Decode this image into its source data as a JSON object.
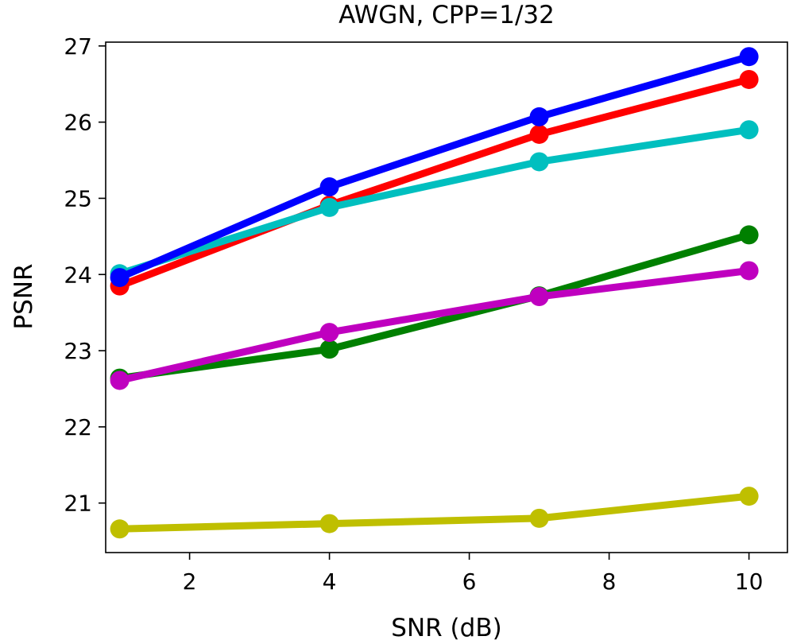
{
  "chart_data": {
    "type": "line",
    "title": "AWGN, CPP=1/32",
    "xlabel": "SNR (dB)",
    "ylabel": "PSNR",
    "xlim": [
      0.8,
      10.55
    ],
    "ylim": [
      20.35,
      27.05
    ],
    "x_ticks": [
      2,
      4,
      6,
      8,
      10
    ],
    "x_tick_labels": [
      "2",
      "4",
      "6",
      "8",
      "10"
    ],
    "y_ticks": [
      21,
      22,
      23,
      24,
      25,
      26,
      27
    ],
    "y_tick_labels": [
      "21",
      "22",
      "23",
      "24",
      "25",
      "26",
      "27"
    ],
    "grid": false,
    "legend": "none",
    "x": [
      1,
      4,
      7,
      10
    ],
    "series": [
      {
        "name": "yellow",
        "color": "#bfbf00",
        "values": [
          20.66,
          20.73,
          20.8,
          21.09
        ]
      },
      {
        "name": "green",
        "color": "#008000",
        "values": [
          22.64,
          23.02,
          23.72,
          24.52
        ]
      },
      {
        "name": "magenta",
        "color": "#bf00bf",
        "values": [
          22.61,
          23.24,
          23.71,
          24.05
        ]
      },
      {
        "name": "red",
        "color": "#ff0000",
        "values": [
          23.85,
          24.91,
          25.84,
          26.56
        ]
      },
      {
        "name": "cyan",
        "color": "#00bfbf",
        "values": [
          24.01,
          24.88,
          25.48,
          25.9
        ]
      },
      {
        "name": "blue",
        "color": "#0000ff",
        "values": [
          23.96,
          25.15,
          26.07,
          26.86
        ]
      }
    ]
  }
}
